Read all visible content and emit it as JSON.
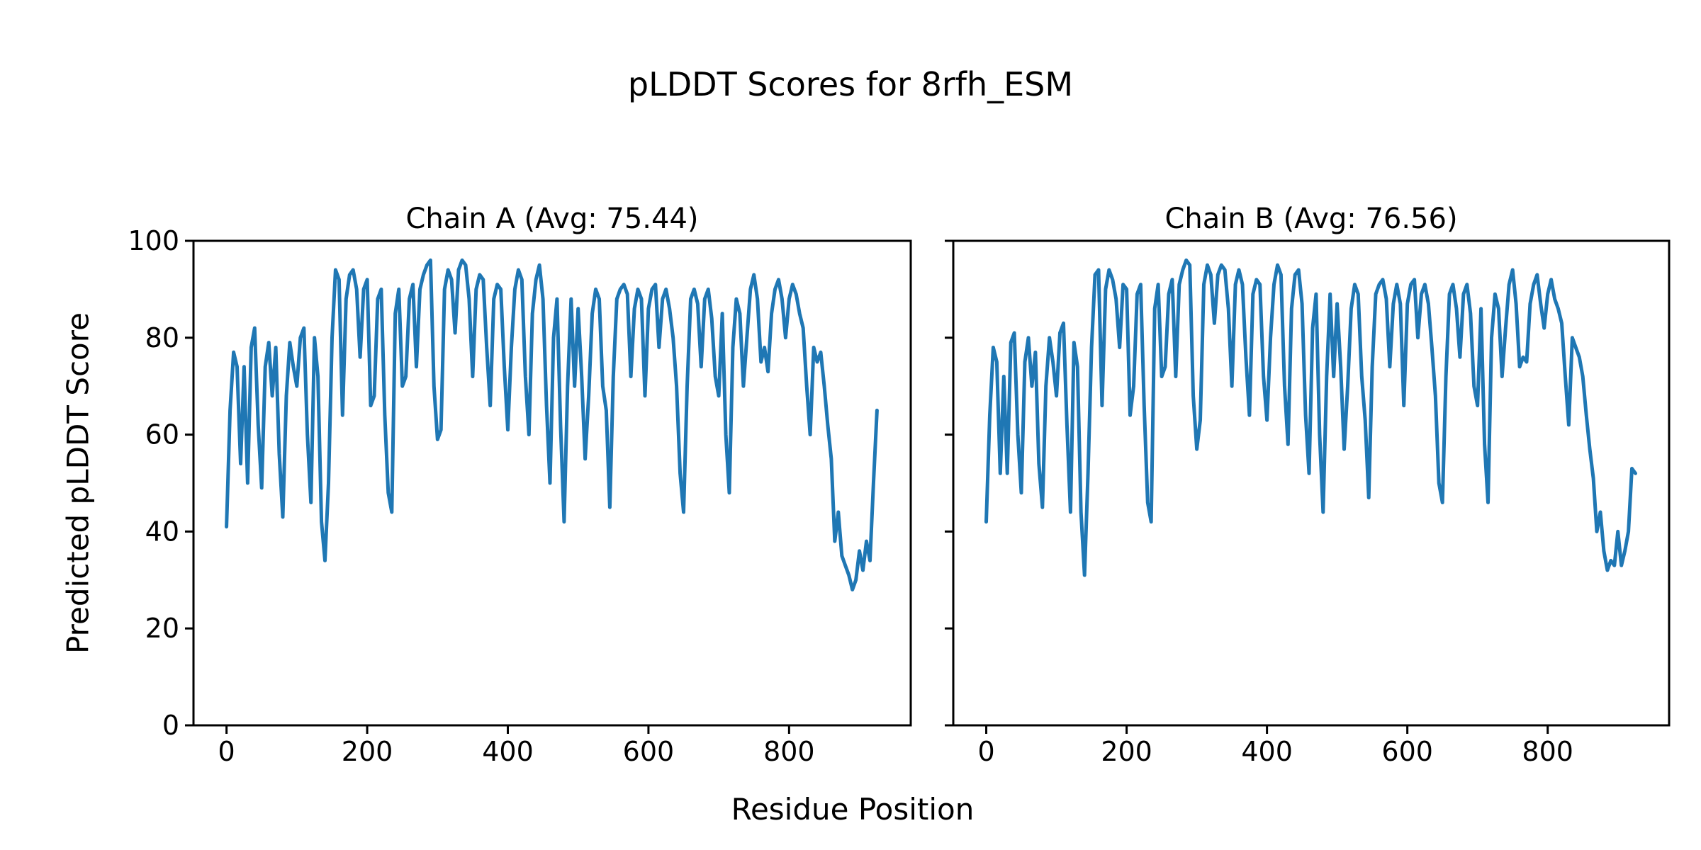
{
  "figure": {
    "suptitle": "pLDDT Scores for 8rfh_ESM",
    "xlabel": "Residue Position",
    "ylabel": "Predicted pLDDT Score",
    "background_color": "#ffffff",
    "text_color": "#000000",
    "spine_color": "#000000"
  },
  "chart_data": [
    {
      "type": "line",
      "chain": "A",
      "title": "Chain A (Avg: 75.44)",
      "average_plddt": 75.44,
      "line_color": "#1f77b4",
      "grid": false,
      "legend": "none",
      "xlim": [
        -47,
        973
      ],
      "ylim": [
        0,
        100
      ],
      "xticks": [
        0,
        200,
        400,
        600,
        800
      ],
      "yticks": [
        0,
        20,
        40,
        60,
        80,
        100
      ],
      "show_ytick_labels": true,
      "x_start": 0,
      "x_step": 5,
      "y_values": [
        41,
        65,
        77,
        74,
        54,
        74,
        50,
        78,
        82,
        62,
        49,
        74,
        79,
        68,
        78,
        56,
        43,
        68,
        79,
        74,
        70,
        80,
        82,
        60,
        46,
        80,
        72,
        42,
        34,
        50,
        80,
        94,
        92,
        64,
        88,
        93,
        94,
        90,
        76,
        90,
        92,
        66,
        68,
        88,
        90,
        64,
        48,
        44,
        85,
        90,
        70,
        72,
        88,
        91,
        74,
        90,
        93,
        95,
        96,
        70,
        59,
        61,
        90,
        94,
        92,
        81,
        94,
        96,
        95,
        88,
        72,
        90,
        93,
        92,
        78,
        66,
        88,
        91,
        90,
        74,
        61,
        78,
        90,
        94,
        92,
        72,
        60,
        85,
        92,
        95,
        88,
        66,
        50,
        80,
        88,
        62,
        42,
        70,
        88,
        70,
        86,
        72,
        55,
        68,
        85,
        90,
        88,
        70,
        65,
        45,
        72,
        88,
        90,
        91,
        89,
        72,
        86,
        90,
        88,
        68,
        86,
        90,
        91,
        78,
        88,
        90,
        86,
        80,
        70,
        52,
        44,
        70,
        88,
        90,
        87,
        74,
        88,
        90,
        84,
        72,
        68,
        85,
        60,
        48,
        78,
        88,
        85,
        70,
        80,
        90,
        93,
        88,
        75,
        78,
        73,
        85,
        90,
        92,
        88,
        80,
        88,
        91,
        89,
        85,
        82,
        70,
        60,
        78,
        75,
        77,
        70,
        62,
        55,
        38,
        44,
        35,
        33,
        31,
        28,
        30,
        36,
        32,
        38,
        34,
        50,
        65
      ]
    },
    {
      "type": "line",
      "chain": "B",
      "title": "Chain B (Avg: 76.56)",
      "average_plddt": 76.56,
      "line_color": "#1f77b4",
      "grid": false,
      "legend": "none",
      "xlim": [
        -47,
        973
      ],
      "ylim": [
        0,
        100
      ],
      "xticks": [
        0,
        200,
        400,
        600,
        800
      ],
      "yticks": [
        0,
        20,
        40,
        60,
        80,
        100
      ],
      "show_ytick_labels": false,
      "x_start": 0,
      "x_step": 5,
      "y_values": [
        42,
        64,
        78,
        75,
        52,
        72,
        52,
        79,
        81,
        60,
        48,
        75,
        80,
        70,
        77,
        54,
        45,
        70,
        80,
        75,
        68,
        81,
        83,
        62,
        44,
        79,
        74,
        44,
        31,
        52,
        78,
        93,
        94,
        66,
        90,
        94,
        92,
        88,
        78,
        91,
        90,
        64,
        70,
        89,
        91,
        66,
        46,
        42,
        86,
        91,
        72,
        74,
        89,
        92,
        72,
        91,
        94,
        96,
        95,
        68,
        57,
        63,
        91,
        95,
        93,
        83,
        93,
        95,
        94,
        86,
        70,
        91,
        94,
        91,
        76,
        64,
        89,
        92,
        91,
        72,
        63,
        80,
        91,
        95,
        93,
        70,
        58,
        86,
        93,
        94,
        87,
        64,
        52,
        82,
        89,
        60,
        44,
        72,
        89,
        72,
        87,
        74,
        57,
        70,
        86,
        91,
        89,
        72,
        63,
        47,
        74,
        89,
        91,
        92,
        88,
        74,
        87,
        91,
        87,
        66,
        87,
        91,
        92,
        80,
        89,
        91,
        87,
        78,
        68,
        50,
        46,
        72,
        89,
        91,
        86,
        76,
        89,
        91,
        85,
        70,
        66,
        86,
        58,
        46,
        80,
        89,
        86,
        72,
        82,
        91,
        94,
        87,
        74,
        76,
        75,
        87,
        91,
        93,
        87,
        82,
        89,
        92,
        88,
        86,
        83,
        72,
        62,
        80,
        78,
        76,
        72,
        64,
        57,
        51,
        40,
        44,
        36,
        32,
        34,
        33,
        40,
        33,
        36,
        40,
        53,
        52
      ]
    }
  ]
}
